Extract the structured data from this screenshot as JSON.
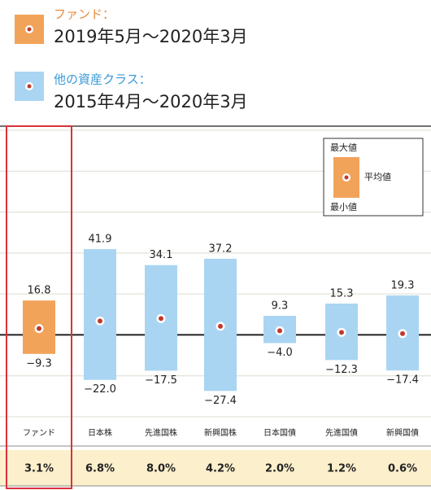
{
  "legend": [
    {
      "label": "ファンド：",
      "period": "2019年5月～2020年3月",
      "color": "#f2a35a"
    },
    {
      "label": "他の資産クラス：",
      "period": "2015年4月～2020年3月",
      "color": "#a9d5f2"
    }
  ],
  "chart_data": {
    "type": "range_bar",
    "categories": [
      "ファンド",
      "日本株",
      "先進国株",
      "新興国株",
      "日本国債",
      "先進国債",
      "新興国債"
    ],
    "colors": [
      "#f2a35a",
      "#a9d5f2",
      "#a9d5f2",
      "#a9d5f2",
      "#a9d5f2",
      "#a9d5f2",
      "#a9d5f2"
    ],
    "series": [
      {
        "name": "最大値",
        "values": [
          16.8,
          41.9,
          34.1,
          37.2,
          9.3,
          15.3,
          19.3
        ]
      },
      {
        "name": "最小値",
        "values": [
          -9.3,
          -22.0,
          -17.5,
          -27.4,
          -4.0,
          -12.3,
          -17.4
        ],
        "value_labels": [
          "−9.3",
          "−22.0",
          "−17.5",
          "−27.4",
          "−4.0",
          "−12.3",
          "−17.4"
        ]
      },
      {
        "name": "平均値",
        "values": [
          3.1,
          6.8,
          8.0,
          4.2,
          2.0,
          1.2,
          0.6
        ],
        "value_labels": [
          "3.1%",
          "6.8%",
          "8.0%",
          "4.2%",
          "2.0%",
          "1.2%",
          "0.6%"
        ]
      }
    ],
    "ylim": [
      -40,
      100
    ],
    "yticks": [
      -40,
      -20,
      0,
      20,
      40,
      60,
      80,
      100
    ],
    "grid": true
  }
}
